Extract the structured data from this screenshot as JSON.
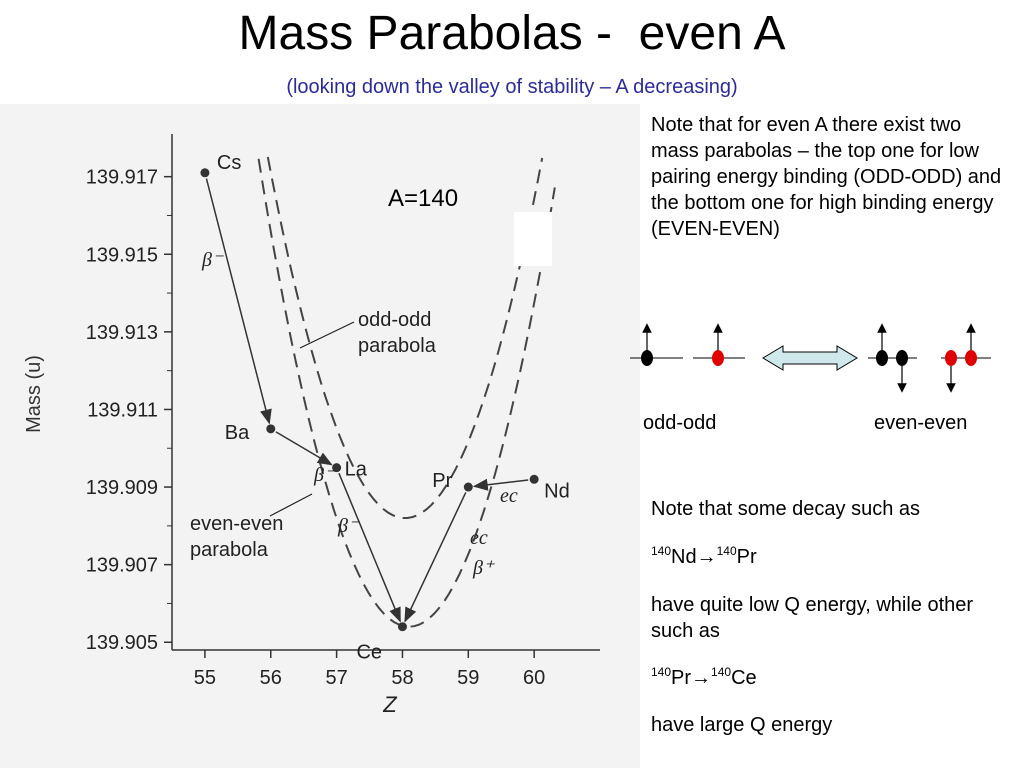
{
  "title": "Mass Parabolas -  even A",
  "subtitle": "(looking down the valley of stability – A decreasing)",
  "notes": {
    "pairing": "Note that for even A there exist two mass parabolas – the top one for low pairing energy binding (ODD-ODD) and the bottom one for high binding energy (EVEN-EVEN)",
    "odd_odd_label": "odd-odd",
    "even_even_label": "even-even",
    "decay_intro": "Note that some decay such as",
    "decay1": {
      "mass": "140",
      "from": "Nd",
      "arrow": "→",
      "mass2": "140",
      "to": "Pr"
    },
    "low_q": "have quite low Q energy, while other such as",
    "decay2": {
      "mass": "140",
      "from": "Pr",
      "arrow": "→",
      "mass2": "140",
      "to": "Ce"
    },
    "high_q": "have large Q energy"
  },
  "colors": {
    "subtitle": "#2b2b9a",
    "nucleon_black": "#000000",
    "nucleon_red": "#e00000",
    "arrow_fill": "#cfe8ec"
  },
  "chart_data": {
    "type": "scatter",
    "annotation": "A=140",
    "xlabel": "Z",
    "ylabel": "Mass (u)",
    "xlim": [
      54.5,
      61.0
    ],
    "ylim": [
      139.9048,
      139.9181
    ],
    "xticks": [
      55,
      56,
      57,
      58,
      59,
      60
    ],
    "yticks": [
      139.905,
      139.907,
      139.909,
      139.911,
      139.913,
      139.915,
      139.917
    ],
    "points": [
      {
        "z": 55,
        "mass": 139.9171,
        "label": "Cs"
      },
      {
        "z": 56,
        "mass": 139.9105,
        "label": "Ba"
      },
      {
        "z": 57,
        "mass": 139.9095,
        "label": "La"
      },
      {
        "z": 58,
        "mass": 139.9054,
        "label": "Ce"
      },
      {
        "z": 59,
        "mass": 139.909,
        "label": "Pr"
      },
      {
        "z": 60,
        "mass": 139.9092,
        "label": "Nd"
      }
    ],
    "series": [
      {
        "name": "odd-odd parabola",
        "z_vertex": 58.04,
        "mass_vertex": 139.9082,
        "curvature": 0.00214,
        "z_range": [
          55.15,
          61.0
        ]
      },
      {
        "name": "even-even parabola",
        "z_vertex": 58.1,
        "mass_vertex": 139.9054,
        "curvature": 0.00231,
        "z_range": [
          54.9,
          61.0
        ]
      }
    ],
    "arrows": [
      {
        "from": "Cs",
        "to": "Ba",
        "label": "β⁻"
      },
      {
        "from": "Ba",
        "to": "La",
        "label": "β⁻"
      },
      {
        "from": "La",
        "to": "Ce",
        "label": "β⁻"
      },
      {
        "from": "Nd",
        "to": "Pr",
        "label": "ec"
      },
      {
        "from": "Pr",
        "to": "Ce",
        "label": "ec β⁺"
      }
    ]
  }
}
